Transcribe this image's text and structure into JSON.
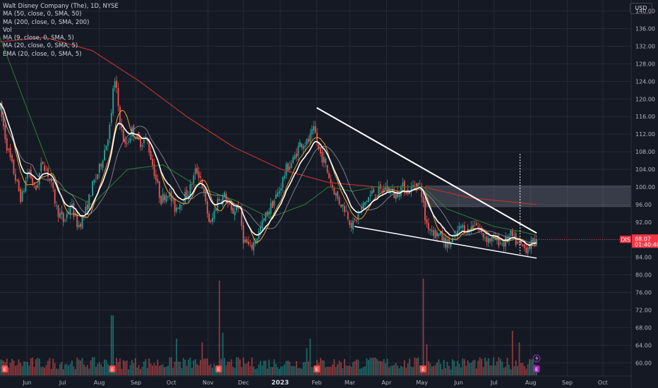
{
  "legend": {
    "title": "Walt Disney Company (The), 1D, NYSE",
    "indicators": [
      {
        "label": "MA (50, close, 0, SMA, 50)",
        "color": "#2e7d32"
      },
      {
        "label": "MA (200, close, 0, SMA, 200)",
        "color": "#b7332f"
      },
      {
        "label": "Vol",
        "color": "#d1d4dc"
      },
      {
        "label": "MA (9, close, 0, SMA, 5)",
        "color": "#f0a030"
      },
      {
        "label": "MA (20, close, 0, SMA, 5)",
        "color": "#9598a1"
      },
      {
        "label": "EMA (20, close, 0, SMA, 5)",
        "color": "#ffffff"
      }
    ]
  },
  "currency_label": "USD",
  "price_tag": {
    "symbol": "DIS",
    "price": "88.07",
    "countdown": "01:40:40",
    "color": "#f23645"
  },
  "chart_data": {
    "type": "candlestick",
    "y_ticks": [
      "140.00",
      "136.00",
      "132.00",
      "128.00",
      "124.00",
      "120.00",
      "116.00",
      "112.00",
      "108.00",
      "104.00",
      "100.00",
      "96.00",
      "92.00",
      "88.00",
      "84.00",
      "80.00",
      "76.00",
      "72.00",
      "68.00",
      "64.00",
      "60.00"
    ],
    "ylim": [
      57,
      142.5
    ],
    "x_labels": [
      {
        "text": "Jun",
        "day": 5
      },
      {
        "text": "Jul",
        "day": 35
      },
      {
        "text": "Aug",
        "day": 66
      },
      {
        "text": "Sep",
        "day": 97
      },
      {
        "text": "Oct",
        "day": 127
      },
      {
        "text": "Nov",
        "day": 158
      },
      {
        "text": "Dec",
        "day": 188
      },
      {
        "text": "2023",
        "day": 219,
        "bold": true
      },
      {
        "text": "Feb",
        "day": 250
      },
      {
        "text": "Mar",
        "day": 278
      },
      {
        "text": "Apr",
        "day": 309
      },
      {
        "text": "May",
        "day": 339
      },
      {
        "text": "Jun",
        "day": 370
      },
      {
        "text": "Jul",
        "day": 400
      },
      {
        "text": "Aug",
        "day": 431
      },
      {
        "text": "Sep",
        "day": 462
      },
      {
        "text": "Oct",
        "day": 492
      }
    ],
    "x_range_days": [
      -18,
      516
    ],
    "price_path": [
      [
        -18,
        118
      ],
      [
        -12,
        109
      ],
      [
        -6,
        103
      ],
      [
        0,
        97
      ],
      [
        6,
        104
      ],
      [
        12,
        99
      ],
      [
        18,
        106
      ],
      [
        24,
        102
      ],
      [
        30,
        95
      ],
      [
        36,
        92
      ],
      [
        42,
        96
      ],
      [
        48,
        91
      ],
      [
        54,
        94
      ],
      [
        60,
        100
      ],
      [
        66,
        104
      ],
      [
        72,
        110
      ],
      [
        76,
        115
      ],
      [
        78,
        124
      ],
      [
        80,
        123
      ],
      [
        84,
        114
      ],
      [
        88,
        109
      ],
      [
        94,
        113
      ],
      [
        100,
        110
      ],
      [
        106,
        111
      ],
      [
        112,
        104
      ],
      [
        118,
        97
      ],
      [
        124,
        99
      ],
      [
        130,
        95
      ],
      [
        136,
        97
      ],
      [
        142,
        99
      ],
      [
        148,
        104
      ],
      [
        152,
        102
      ],
      [
        156,
        96
      ],
      [
        160,
        91
      ],
      [
        166,
        97
      ],
      [
        172,
        98
      ],
      [
        178,
        94
      ],
      [
        184,
        96
      ],
      [
        188,
        88
      ],
      [
        194,
        86
      ],
      [
        200,
        89
      ],
      [
        206,
        93
      ],
      [
        212,
        96
      ],
      [
        218,
        99
      ],
      [
        224,
        104
      ],
      [
        230,
        106
      ],
      [
        236,
        110
      ],
      [
        242,
        110
      ],
      [
        248,
        113
      ],
      [
        252,
        108
      ],
      [
        256,
        106
      ],
      [
        262,
        101
      ],
      [
        268,
        97
      ],
      [
        274,
        95
      ],
      [
        280,
        91
      ],
      [
        286,
        94
      ],
      [
        292,
        97
      ],
      [
        298,
        99
      ],
      [
        304,
        99
      ],
      [
        310,
        100
      ],
      [
        316,
        98
      ],
      [
        322,
        100
      ],
      [
        328,
        99
      ],
      [
        334,
        101
      ],
      [
        338,
        100
      ],
      [
        342,
        92
      ],
      [
        348,
        90
      ],
      [
        354,
        89
      ],
      [
        360,
        87
      ],
      [
        366,
        88
      ],
      [
        372,
        91
      ],
      [
        378,
        90
      ],
      [
        384,
        92
      ],
      [
        390,
        89
      ],
      [
        396,
        88
      ],
      [
        402,
        88
      ],
      [
        408,
        87
      ],
      [
        414,
        89
      ],
      [
        420,
        87
      ],
      [
        426,
        86
      ],
      [
        432,
        87
      ],
      [
        436,
        88.07
      ]
    ],
    "ma200": [
      [
        -18,
        133
      ],
      [
        20,
        134
      ],
      [
        60,
        131
      ],
      [
        100,
        124
      ],
      [
        140,
        116
      ],
      [
        180,
        109
      ],
      [
        220,
        104
      ],
      [
        260,
        101
      ],
      [
        300,
        100
      ],
      [
        340,
        100
      ],
      [
        380,
        97.5
      ],
      [
        436,
        96
      ]
    ],
    "ma50": [
      [
        -18,
        134
      ],
      [
        30,
        100
      ],
      [
        60,
        96
      ],
      [
        90,
        104
      ],
      [
        120,
        105
      ],
      [
        150,
        100
      ],
      [
        180,
        97
      ],
      [
        210,
        93
      ],
      [
        240,
        96
      ],
      [
        260,
        100
      ],
      [
        280,
        99
      ],
      [
        300,
        100
      ],
      [
        330,
        100
      ],
      [
        340,
        100
      ],
      [
        360,
        95
      ],
      [
        380,
        93
      ],
      [
        400,
        91
      ],
      [
        420,
        90
      ],
      [
        436,
        89
      ]
    ],
    "volume": {
      "ylim": [
        0,
        1
      ],
      "baseline": [
        -18,
        0.14
      ],
      "spikes": [
        {
          "day": 77,
          "value": 0.62
        },
        {
          "day": 131,
          "value": 0.38
        },
        {
          "day": 153,
          "value": 0.34
        },
        {
          "day": 167,
          "value": 0.98
        },
        {
          "day": 171,
          "value": 0.44
        },
        {
          "day": 241,
          "value": 0.28
        },
        {
          "day": 244,
          "value": 0.38
        },
        {
          "day": 296,
          "value": 0.18
        },
        {
          "day": 340,
          "value": 1.0
        },
        {
          "day": 343,
          "value": 0.32
        },
        {
          "day": 416,
          "value": 0.46
        },
        {
          "day": 421,
          "value": 0.34
        }
      ]
    },
    "trendlines": [
      {
        "from": [
          250,
          118
        ],
        "to": [
          436,
          89.5
        ],
        "color": "#ffffff",
        "width": 2
      },
      {
        "from": [
          282,
          91
        ],
        "to": [
          436,
          83.8
        ],
        "color": "#ffffff",
        "width": 1.5
      }
    ],
    "resistance_zone": {
      "from_day": 342,
      "to_day": 516,
      "low": 95.5,
      "high": 100.2
    },
    "projection_line": {
      "day": 422,
      "from": 84.5,
      "to": 107.5
    },
    "earnings_markers": [
      -14,
      77,
      167,
      250,
      340,
      436
    ],
    "flash_marker_day": 436
  }
}
